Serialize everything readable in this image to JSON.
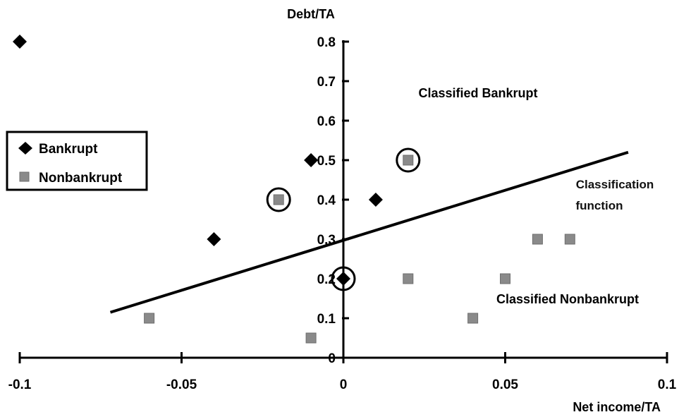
{
  "chart_data": {
    "type": "scatter",
    "xlabel": "Net income/TA",
    "ylabel": "Debt/TA",
    "xlim": [
      -0.1,
      0.1
    ],
    "ylim": [
      0,
      0.8
    ],
    "x_ticks": [
      "-0.1",
      "-0.05",
      "0",
      "0.05",
      "0.1"
    ],
    "y_ticks": [
      "0",
      "0.1",
      "0.2",
      "0.3",
      "0.4",
      "0.5",
      "0.6",
      "0.7",
      "0.8"
    ],
    "grid": false,
    "legend_position": "left",
    "series": [
      {
        "name": "Bankrupt",
        "marker": "diamond",
        "color": "#000000",
        "points": [
          {
            "x": -0.1,
            "y": 0.8
          },
          {
            "x": -0.04,
            "y": 0.3
          },
          {
            "x": -0.01,
            "y": 0.5
          },
          {
            "x": 0.01,
            "y": 0.4
          },
          {
            "x": 0.0,
            "y": 0.2
          }
        ]
      },
      {
        "name": "Nonbankrupt",
        "marker": "square",
        "color": "#8a8a8a",
        "points": [
          {
            "x": -0.06,
            "y": 0.1
          },
          {
            "x": -0.02,
            "y": 0.4
          },
          {
            "x": -0.01,
            "y": 0.05
          },
          {
            "x": 0.02,
            "y": 0.5
          },
          {
            "x": 0.02,
            "y": 0.2
          },
          {
            "x": 0.04,
            "y": 0.1
          },
          {
            "x": 0.05,
            "y": 0.2
          },
          {
            "x": 0.06,
            "y": 0.3
          },
          {
            "x": 0.07,
            "y": 0.3
          }
        ]
      }
    ],
    "misclassified_circled": [
      {
        "x": -0.02,
        "y": 0.4
      },
      {
        "x": 0.02,
        "y": 0.5
      },
      {
        "x": 0.0,
        "y": 0.2
      }
    ],
    "classification_function": {
      "x1": -0.072,
      "y1": 0.115,
      "x2": 0.088,
      "y2": 0.52
    },
    "annotations": {
      "classified_bankrupt": "Classified Bankrupt",
      "classification_function_line1": "Classification",
      "classification_function_line2": "function",
      "classified_nonbankrupt": "Classified Nonbankrupt"
    }
  }
}
